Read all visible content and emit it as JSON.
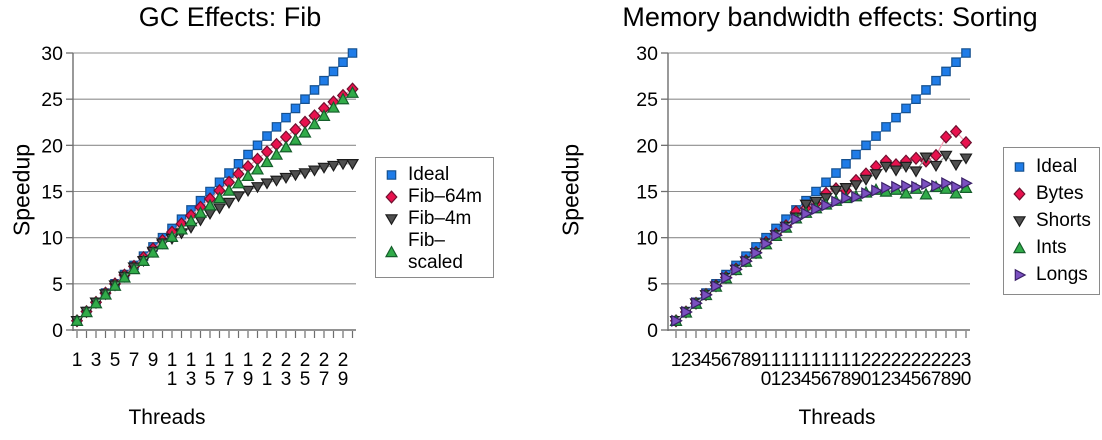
{
  "page": {
    "background": "#ffffff"
  },
  "chart_data": [
    {
      "type": "scatter",
      "title": "GC Effects: Fib",
      "xlabel": "Threads",
      "ylabel": "Speedup",
      "ylim": [
        0,
        30
      ],
      "yticks": [
        0,
        5,
        10,
        15,
        20,
        25,
        30
      ],
      "grid": true,
      "legend_position": "right",
      "x": [
        1,
        2,
        3,
        4,
        5,
        6,
        7,
        8,
        9,
        10,
        11,
        12,
        13,
        14,
        15,
        16,
        17,
        18,
        19,
        20,
        21,
        22,
        23,
        24,
        25,
        26,
        27,
        28,
        29,
        30
      ],
      "x_tick_label_positions": [
        1,
        3,
        5,
        7,
        9,
        11,
        13,
        15,
        17,
        19,
        21,
        23,
        25,
        27,
        29
      ],
      "x_tick_labels": [
        "1",
        "3",
        "5",
        "7",
        "9",
        "11",
        "13",
        "15",
        "17",
        "19",
        "21",
        "23",
        "25",
        "27",
        "29"
      ],
      "y_tick_labels": [
        "0",
        "5",
        "10",
        "15",
        "20",
        "25",
        "30"
      ],
      "series": [
        {
          "name": "Ideal",
          "marker": "square",
          "color": "#1f7ce8",
          "edge": "#15508f",
          "line": "#6b9fe8",
          "values": [
            1,
            2,
            3,
            4,
            5,
            6,
            7,
            8,
            9,
            10,
            11,
            12,
            13,
            14,
            15,
            16,
            17,
            18,
            19,
            20,
            21,
            22,
            23,
            24,
            25,
            26,
            27,
            28,
            29,
            30
          ]
        },
        {
          "name": "Fib–64m",
          "marker": "diamond",
          "color": "#e8124e",
          "edge": "#70102f",
          "line": "#f49ab2",
          "values": [
            1,
            2,
            3,
            4,
            5,
            5.95,
            6.9,
            7.85,
            8.8,
            9.7,
            10.6,
            11.5,
            12.4,
            13.3,
            14.2,
            15.1,
            16,
            16.9,
            17.7,
            18.5,
            19.3,
            20.1,
            20.9,
            21.7,
            22.5,
            23.2,
            24,
            24.7,
            25.4,
            26.1
          ]
        },
        {
          "name": "Fib–4m",
          "marker": "triangle-down",
          "color": "#4f4f4f",
          "edge": "#1c1c1c",
          "line": "#9a9a9a",
          "values": [
            1,
            2,
            3,
            3.9,
            4.85,
            5.8,
            6.8,
            7.5,
            8.5,
            9.4,
            9.9,
            10.5,
            11.1,
            11.9,
            12.6,
            13.2,
            13.8,
            14.5,
            15.1,
            15.5,
            15.9,
            16.2,
            16.5,
            16.8,
            17,
            17.3,
            17.6,
            17.8,
            18,
            18
          ]
        },
        {
          "name": "Fib–scaled",
          "marker": "triangle-up",
          "color": "#31ab49",
          "edge": "#155e2b",
          "line": "#7bc98f",
          "values": [
            1,
            1.95,
            2.9,
            3.85,
            4.8,
            5.7,
            6.6,
            7.5,
            8.4,
            9.3,
            10.1,
            10.9,
            11.8,
            12.7,
            13.5,
            14.3,
            15.1,
            15.9,
            16.7,
            17.4,
            18.2,
            19,
            19.8,
            20.6,
            21.4,
            22.3,
            23.2,
            24.1,
            25,
            25.7
          ]
        }
      ]
    },
    {
      "type": "scatter",
      "title": "Memory bandwidth effects: Sorting",
      "xlabel": "Threads",
      "ylabel": "Speedup",
      "ylim": [
        0,
        30
      ],
      "yticks": [
        0,
        5,
        10,
        15,
        20,
        25,
        30
      ],
      "grid": true,
      "legend_position": "right",
      "x": [
        1,
        2,
        3,
        4,
        5,
        6,
        7,
        8,
        9,
        10,
        11,
        12,
        13,
        14,
        15,
        16,
        17,
        18,
        19,
        20,
        21,
        22,
        23,
        24,
        25,
        26,
        27,
        28,
        29,
        30
      ],
      "x_tick_label_positions": [
        1,
        2,
        3,
        4,
        5,
        6,
        7,
        8,
        9,
        10,
        11,
        12,
        13,
        14,
        15,
        16,
        17,
        18,
        19,
        20,
        21,
        22,
        23,
        24,
        25,
        26,
        27,
        28,
        29,
        30
      ],
      "x_tick_labels": [
        "1",
        "2",
        "3",
        "4",
        "5",
        "6",
        "7",
        "8",
        "9",
        "10",
        "11",
        "12",
        "13",
        "14",
        "15",
        "16",
        "17",
        "18",
        "19",
        "20",
        "21",
        "22",
        "23",
        "24",
        "25",
        "26",
        "27",
        "28",
        "29",
        "30"
      ],
      "y_tick_labels": [
        "0",
        "5",
        "10",
        "15",
        "20",
        "25",
        "30"
      ],
      "series": [
        {
          "name": "Ideal",
          "marker": "square",
          "color": "#1f7ce8",
          "edge": "#15508f",
          "line": "#6b9fe8",
          "values": [
            1,
            2,
            3,
            4,
            5,
            6,
            7,
            8,
            9,
            10,
            11,
            12,
            13,
            14,
            15,
            16,
            17,
            18,
            19,
            20,
            21,
            22,
            23,
            24,
            25,
            26,
            27,
            28,
            29,
            30
          ]
        },
        {
          "name": "Bytes",
          "marker": "diamond",
          "color": "#e8124e",
          "edge": "#70102f",
          "line": "#f49ab2",
          "values": [
            1,
            1.95,
            2.9,
            3.85,
            4.8,
            5.7,
            6.6,
            7.5,
            8.4,
            9.5,
            10.4,
            11.3,
            12.8,
            13.2,
            13.7,
            14.8,
            15.3,
            15.1,
            16.2,
            16.9,
            17.7,
            18.3,
            17.9,
            18.3,
            18.6,
            18.3,
            18.9,
            20.9,
            21.5,
            20.3
          ]
        },
        {
          "name": "Shorts",
          "marker": "triangle-down",
          "color": "#4f4f4f",
          "edge": "#1c1c1c",
          "line": "#9a9a9a",
          "values": [
            1,
            1.95,
            2.9,
            3.8,
            4.75,
            5.65,
            6.55,
            7.45,
            8.35,
            9.4,
            10.3,
            11.2,
            12.2,
            13.6,
            13.9,
            14.3,
            15.1,
            15.4,
            15.7,
            16.3,
            16.9,
            17.7,
            17.3,
            17.7,
            17.2,
            18.7,
            17.8,
            18.9,
            17.9,
            18.6
          ]
        },
        {
          "name": "Ints",
          "marker": "triangle-up",
          "color": "#31ab49",
          "edge": "#155e2b",
          "line": "#7bc98f",
          "values": [
            1,
            1.9,
            2.85,
            3.8,
            4.7,
            5.6,
            6.5,
            7.4,
            8.3,
            9.3,
            10.2,
            11.1,
            12.1,
            12.7,
            13.2,
            13.6,
            14,
            14.3,
            14.5,
            14.9,
            15.2,
            15,
            15.2,
            14.8,
            15.3,
            14.7,
            15.5,
            15.3,
            14.8,
            15.4
          ]
        },
        {
          "name": "Longs",
          "marker": "triangle-right",
          "color": "#7b50c0",
          "edge": "#3a2168",
          "line": "#b39bdc",
          "values": [
            1,
            1.95,
            2.9,
            3.8,
            4.75,
            5.65,
            6.55,
            7.45,
            8.35,
            9.35,
            10.25,
            11.15,
            12,
            12.6,
            13.1,
            13.5,
            13.9,
            14.3,
            14.4,
            14.8,
            15.1,
            15.4,
            15.5,
            15.6,
            15.5,
            15.8,
            15.6,
            15.9,
            15.5,
            15.9
          ]
        }
      ]
    }
  ]
}
